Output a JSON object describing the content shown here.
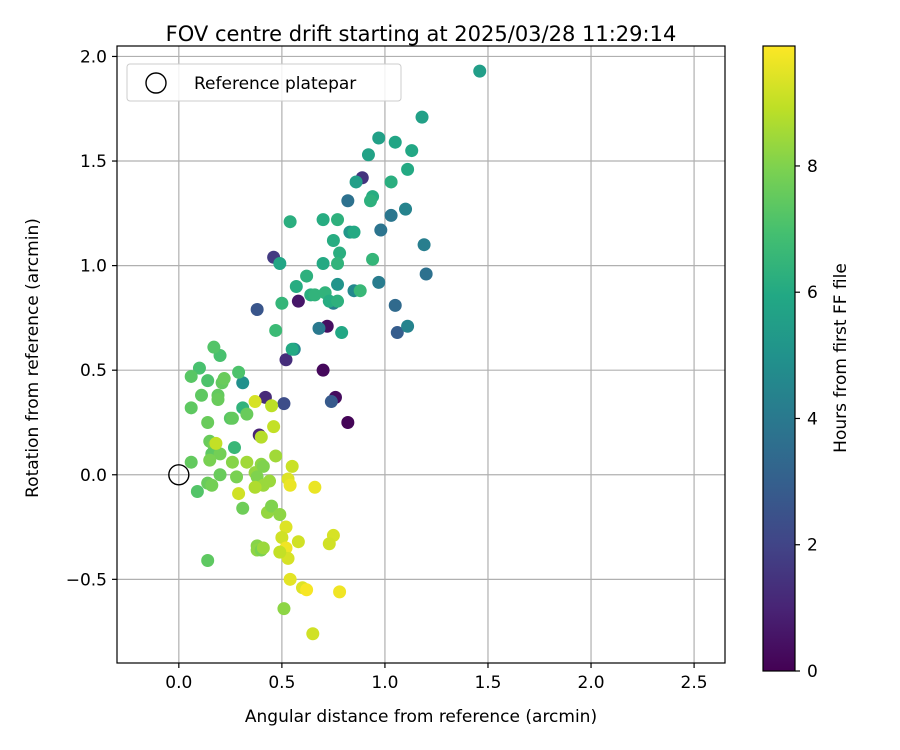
{
  "chart_data": {
    "type": "scatter",
    "title": "FOV centre drift starting at 2025/03/28 11:29:14",
    "xlabel": "Angular distance from reference (arcmin)",
    "ylabel": "Rotation from reference (arcmin)",
    "xlim": [
      -0.3,
      2.65
    ],
    "ylim": [
      -0.9,
      2.05
    ],
    "xticks": [
      0.0,
      0.5,
      1.0,
      1.5,
      2.0,
      2.5
    ],
    "xtick_labels": [
      "0.0",
      "0.5",
      "1.0",
      "1.5",
      "2.0",
      "2.5"
    ],
    "yticks": [
      -0.5,
      0.0,
      0.5,
      1.0,
      1.5,
      2.0
    ],
    "ytick_labels": [
      "−0.5",
      "0.0",
      "0.5",
      "1.0",
      "1.5",
      "2.0"
    ],
    "grid": true,
    "legend": {
      "position": "top-left",
      "entries": [
        "Reference platepar"
      ]
    },
    "reference_point": {
      "x": 0.0,
      "y": 0.0,
      "label": "Reference platepar"
    },
    "colorbar": {
      "label": "Hours from first FF file",
      "range": [
        0,
        9.9
      ],
      "ticks": [
        0,
        2,
        4,
        6,
        8
      ],
      "tick_labels": [
        "0",
        "2",
        "4",
        "6",
        "8"
      ],
      "colormap": "viridis"
    },
    "points": [
      {
        "x": 0.82,
        "y": 0.25,
        "h": 0.1
      },
      {
        "x": 0.7,
        "y": 0.5,
        "h": 0.2
      },
      {
        "x": 0.76,
        "y": 0.37,
        "h": 0.3
      },
      {
        "x": 0.72,
        "y": 0.71,
        "h": 0.4
      },
      {
        "x": 0.89,
        "y": 1.42,
        "h": 1.5
      },
      {
        "x": 0.58,
        "y": 0.83,
        "h": 0.6
      },
      {
        "x": 0.39,
        "y": 0.19,
        "h": 1.0
      },
      {
        "x": 0.42,
        "y": 0.37,
        "h": 1.2
      },
      {
        "x": 0.52,
        "y": 0.55,
        "h": 1.3
      },
      {
        "x": 0.46,
        "y": 1.04,
        "h": 1.7
      },
      {
        "x": 0.51,
        "y": 0.34,
        "h": 2.3
      },
      {
        "x": 0.74,
        "y": 0.35,
        "h": 2.8
      },
      {
        "x": 0.38,
        "y": 0.79,
        "h": 2.6
      },
      {
        "x": 1.06,
        "y": 0.68,
        "h": 2.9
      },
      {
        "x": 1.05,
        "y": 0.81,
        "h": 3.4
      },
      {
        "x": 1.2,
        "y": 0.96,
        "h": 3.7
      },
      {
        "x": 1.11,
        "y": 0.71,
        "h": 4.4
      },
      {
        "x": 0.82,
        "y": 1.31,
        "h": 3.7
      },
      {
        "x": 0.98,
        "y": 1.17,
        "h": 3.8
      },
      {
        "x": 1.19,
        "y": 1.1,
        "h": 4.2
      },
      {
        "x": 1.03,
        "y": 1.24,
        "h": 3.9
      },
      {
        "x": 1.1,
        "y": 1.27,
        "h": 4.4
      },
      {
        "x": 0.97,
        "y": 0.92,
        "h": 4.1
      },
      {
        "x": 0.75,
        "y": 0.82,
        "h": 4.2
      },
      {
        "x": 0.68,
        "y": 0.7,
        "h": 4.0
      },
      {
        "x": 0.85,
        "y": 0.88,
        "h": 4.6
      },
      {
        "x": 0.56,
        "y": 0.6,
        "h": 4.6
      },
      {
        "x": 0.77,
        "y": 0.91,
        "h": 5.1
      },
      {
        "x": 0.31,
        "y": 0.44,
        "h": 4.9
      },
      {
        "x": 0.83,
        "y": 1.16,
        "h": 5.2
      },
      {
        "x": 0.86,
        "y": 1.4,
        "h": 5.5
      },
      {
        "x": 0.92,
        "y": 1.53,
        "h": 5.7
      },
      {
        "x": 0.97,
        "y": 1.61,
        "h": 5.6
      },
      {
        "x": 1.05,
        "y": 1.59,
        "h": 5.8
      },
      {
        "x": 1.13,
        "y": 1.55,
        "h": 5.9
      },
      {
        "x": 1.18,
        "y": 1.71,
        "h": 5.6
      },
      {
        "x": 1.46,
        "y": 1.93,
        "h": 5.5
      },
      {
        "x": 1.11,
        "y": 1.46,
        "h": 6.0
      },
      {
        "x": 1.03,
        "y": 1.4,
        "h": 6.2
      },
      {
        "x": 0.94,
        "y": 1.33,
        "h": 6.1
      },
      {
        "x": 0.93,
        "y": 1.31,
        "h": 6.3
      },
      {
        "x": 0.85,
        "y": 1.16,
        "h": 6.0
      },
      {
        "x": 0.77,
        "y": 1.22,
        "h": 6.3
      },
      {
        "x": 0.7,
        "y": 1.22,
        "h": 6.1
      },
      {
        "x": 0.75,
        "y": 1.12,
        "h": 6.1
      },
      {
        "x": 0.78,
        "y": 1.06,
        "h": 6.2
      },
      {
        "x": 0.7,
        "y": 1.01,
        "h": 6.0
      },
      {
        "x": 0.77,
        "y": 1.01,
        "h": 6.4
      },
      {
        "x": 0.94,
        "y": 1.03,
        "h": 6.5
      },
      {
        "x": 0.49,
        "y": 1.01,
        "h": 5.8
      },
      {
        "x": 0.54,
        "y": 1.21,
        "h": 6.2
      },
      {
        "x": 0.62,
        "y": 0.95,
        "h": 6.3
      },
      {
        "x": 0.57,
        "y": 0.9,
        "h": 6.1
      },
      {
        "x": 0.64,
        "y": 0.86,
        "h": 6.2
      },
      {
        "x": 0.66,
        "y": 0.86,
        "h": 6.4
      },
      {
        "x": 0.71,
        "y": 0.87,
        "h": 6.4
      },
      {
        "x": 0.73,
        "y": 0.83,
        "h": 6.1
      },
      {
        "x": 0.77,
        "y": 0.83,
        "h": 6.3
      },
      {
        "x": 0.79,
        "y": 0.68,
        "h": 5.9
      },
      {
        "x": 0.88,
        "y": 0.88,
        "h": 6.6
      },
      {
        "x": 0.5,
        "y": 0.82,
        "h": 6.5
      },
      {
        "x": 0.47,
        "y": 0.69,
        "h": 6.7
      },
      {
        "x": 0.55,
        "y": 0.6,
        "h": 6.0
      },
      {
        "x": 0.31,
        "y": 0.32,
        "h": 6.4
      },
      {
        "x": 0.27,
        "y": 0.13,
        "h": 6.6
      },
      {
        "x": 0.29,
        "y": 0.49,
        "h": 7.1
      },
      {
        "x": 0.2,
        "y": 0.57,
        "h": 7.0
      },
      {
        "x": 0.17,
        "y": 0.61,
        "h": 7.2
      },
      {
        "x": 0.1,
        "y": 0.51,
        "h": 7.0
      },
      {
        "x": 0.14,
        "y": 0.45,
        "h": 7.1
      },
      {
        "x": 0.21,
        "y": 0.44,
        "h": 7.5
      },
      {
        "x": 0.22,
        "y": 0.46,
        "h": 7.6
      },
      {
        "x": 0.06,
        "y": 0.47,
        "h": 7.3
      },
      {
        "x": 0.11,
        "y": 0.38,
        "h": 7.4
      },
      {
        "x": 0.19,
        "y": 0.38,
        "h": 7.5
      },
      {
        "x": 0.19,
        "y": 0.36,
        "h": 7.6
      },
      {
        "x": 0.06,
        "y": 0.32,
        "h": 7.4
      },
      {
        "x": 0.14,
        "y": 0.25,
        "h": 7.6
      },
      {
        "x": 0.25,
        "y": 0.27,
        "h": 7.3
      },
      {
        "x": 0.26,
        "y": 0.27,
        "h": 7.5
      },
      {
        "x": 0.33,
        "y": 0.29,
        "h": 7.6
      },
      {
        "x": 0.15,
        "y": 0.16,
        "h": 7.6
      },
      {
        "x": 0.17,
        "y": 0.14,
        "h": 7.8
      },
      {
        "x": 0.16,
        "y": 0.1,
        "h": 7.4
      },
      {
        "x": 0.06,
        "y": 0.06,
        "h": 7.5
      },
      {
        "x": 0.2,
        "y": 0.1,
        "h": 7.8
      },
      {
        "x": 0.15,
        "y": 0.07,
        "h": 7.9
      },
      {
        "x": 0.2,
        "y": 0.0,
        "h": 7.6
      },
      {
        "x": 0.14,
        "y": -0.04,
        "h": 7.6
      },
      {
        "x": 0.16,
        "y": -0.05,
        "h": 7.8
      },
      {
        "x": 0.09,
        "y": -0.08,
        "h": 7.2
      },
      {
        "x": 0.14,
        "y": -0.41,
        "h": 7.4
      },
      {
        "x": 0.31,
        "y": -0.16,
        "h": 7.7
      },
      {
        "x": 0.28,
        "y": -0.01,
        "h": 7.9
      },
      {
        "x": 0.26,
        "y": 0.06,
        "h": 8.1
      },
      {
        "x": 0.33,
        "y": 0.06,
        "h": 8.5
      },
      {
        "x": 0.37,
        "y": 0.01,
        "h": 8.3
      },
      {
        "x": 0.4,
        "y": 0.05,
        "h": 8.2
      },
      {
        "x": 0.38,
        "y": -0.01,
        "h": 8.0
      },
      {
        "x": 0.41,
        "y": -0.05,
        "h": 8.4
      },
      {
        "x": 0.41,
        "y": 0.04,
        "h": 8.0
      },
      {
        "x": 0.44,
        "y": -0.03,
        "h": 8.4
      },
      {
        "x": 0.47,
        "y": 0.09,
        "h": 8.5
      },
      {
        "x": 0.43,
        "y": -0.18,
        "h": 8.3
      },
      {
        "x": 0.45,
        "y": -0.15,
        "h": 8.0
      },
      {
        "x": 0.49,
        "y": -0.19,
        "h": 8.2
      },
      {
        "x": 0.38,
        "y": -0.34,
        "h": 8.1
      },
      {
        "x": 0.38,
        "y": -0.36,
        "h": 8.2
      },
      {
        "x": 0.4,
        "y": -0.36,
        "h": 7.9
      },
      {
        "x": 0.41,
        "y": -0.35,
        "h": 8.4
      },
      {
        "x": 0.51,
        "y": -0.64,
        "h": 8.2
      },
      {
        "x": 0.4,
        "y": 0.18,
        "h": 8.8
      },
      {
        "x": 0.45,
        "y": 0.33,
        "h": 8.9
      },
      {
        "x": 0.46,
        "y": 0.23,
        "h": 9.0
      },
      {
        "x": 0.37,
        "y": 0.35,
        "h": 9.3
      },
      {
        "x": 0.18,
        "y": 0.15,
        "h": 9.0
      },
      {
        "x": 0.29,
        "y": -0.09,
        "h": 9.2
      },
      {
        "x": 0.53,
        "y": -0.02,
        "h": 9.4
      },
      {
        "x": 0.55,
        "y": 0.04,
        "h": 9.1
      },
      {
        "x": 0.54,
        "y": -0.05,
        "h": 9.6
      },
      {
        "x": 0.66,
        "y": -0.06,
        "h": 9.6
      },
      {
        "x": 0.52,
        "y": -0.25,
        "h": 9.4
      },
      {
        "x": 0.5,
        "y": -0.3,
        "h": 9.2
      },
      {
        "x": 0.52,
        "y": -0.35,
        "h": 9.7
      },
      {
        "x": 0.53,
        "y": -0.4,
        "h": 9.3
      },
      {
        "x": 0.58,
        "y": -0.32,
        "h": 9.2
      },
      {
        "x": 0.49,
        "y": -0.37,
        "h": 9.0
      },
      {
        "x": 0.75,
        "y": -0.29,
        "h": 9.3
      },
      {
        "x": 0.73,
        "y": -0.33,
        "h": 9.2
      },
      {
        "x": 0.54,
        "y": -0.5,
        "h": 9.5
      },
      {
        "x": 0.6,
        "y": -0.54,
        "h": 9.4
      },
      {
        "x": 0.62,
        "y": -0.55,
        "h": 9.8
      },
      {
        "x": 0.78,
        "y": -0.56,
        "h": 9.7
      },
      {
        "x": 0.65,
        "y": -0.76,
        "h": 9.2
      },
      {
        "x": 0.37,
        "y": -0.06,
        "h": 8.7
      }
    ]
  }
}
